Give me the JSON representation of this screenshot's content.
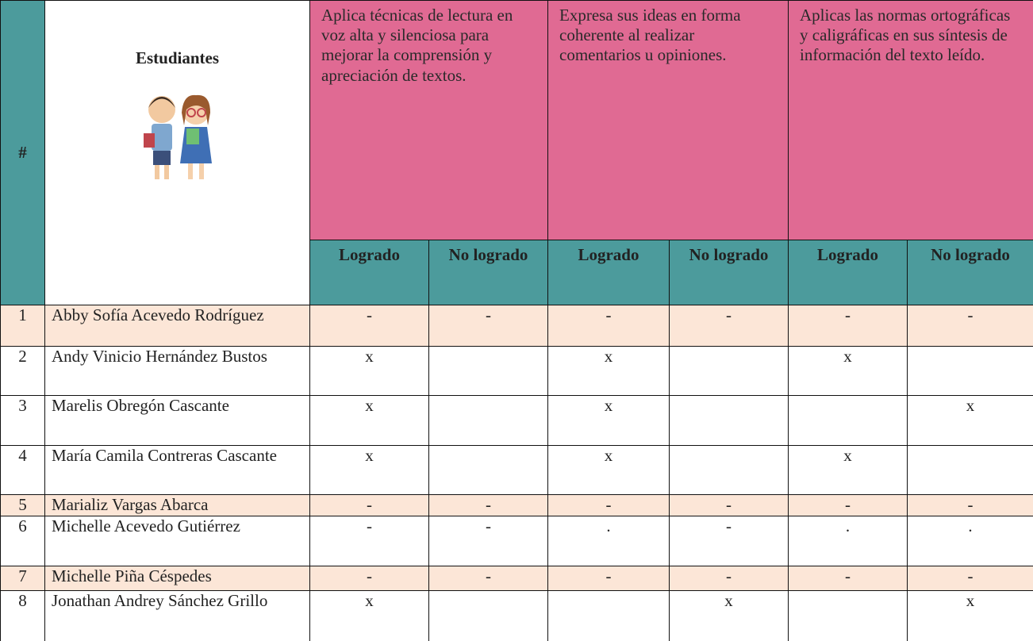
{
  "header": {
    "number": "#",
    "students": "Estudiantes"
  },
  "indicators": [
    {
      "text": "Aplica técnicas de lectura en voz alta y silenciosa para mejorar la comprensión y apreciación de textos.",
      "levels": [
        "Logrado",
        "No logrado"
      ]
    },
    {
      "text": "Expresa sus ideas en forma coherente al realizar comentarios u opiniones.",
      "levels": [
        "Logrado",
        "No logrado"
      ]
    },
    {
      "text": "Aplicas las normas ortográficas y caligráficas en sus síntesis de información del texto leído.",
      "levels": [
        "Logrado",
        "No logrado"
      ]
    }
  ],
  "rows": [
    {
      "number": "1",
      "name": "Abby Sofía Acevedo Rodríguez",
      "marks": [
        "-",
        "-",
        "-",
        "-",
        "-",
        "-"
      ],
      "highlight": true
    },
    {
      "number": "2",
      "name": "Andy Vinicio Hernández Bustos",
      "marks": [
        "x",
        "",
        "x",
        "",
        "x",
        ""
      ],
      "highlight": false
    },
    {
      "number": "3",
      "name": "Marelis Obregón Cascante",
      "marks": [
        "x",
        "",
        "x",
        "",
        "",
        "x"
      ],
      "highlight": false
    },
    {
      "number": "4",
      "name": "María Camila Contreras Cascante",
      "marks": [
        "x",
        "",
        "x",
        "",
        "x",
        ""
      ],
      "highlight": false
    },
    {
      "number": "5",
      "name": "Marializ Vargas Abarca",
      "marks": [
        "-",
        "-",
        "-",
        "-",
        "-",
        "-"
      ],
      "highlight": true
    },
    {
      "number": "6",
      "name": "Michelle Acevedo Gutiérrez",
      "marks": [
        "-",
        "-",
        ".",
        "-",
        ".",
        "."
      ],
      "highlight": false
    },
    {
      "number": "7",
      "name": "Michelle Piña Céspedes",
      "marks": [
        "-",
        "-",
        "-",
        "-",
        "-",
        "-"
      ],
      "highlight": true
    },
    {
      "number": "8",
      "name": "Jonathan Andrey Sánchez Grillo",
      "marks": [
        "x",
        "",
        "",
        "x",
        "",
        "x"
      ],
      "highlight": false
    }
  ]
}
